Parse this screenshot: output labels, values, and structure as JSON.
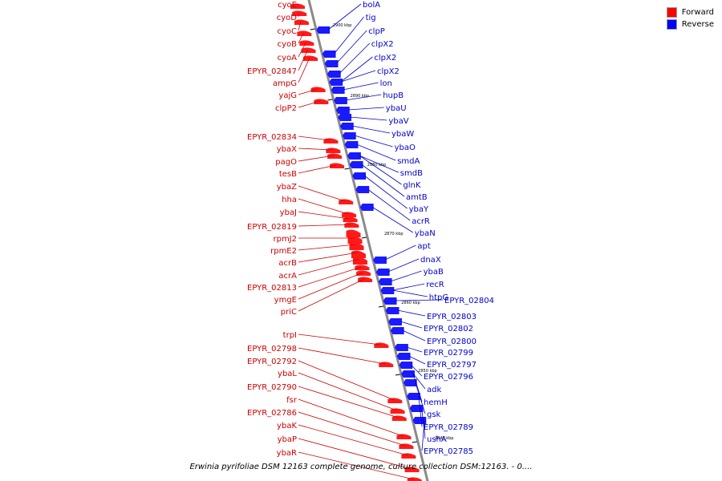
{
  "legend": {
    "forward_label": "Forward",
    "reverse_label": "Reverse",
    "forward_color": "#ff0000",
    "reverse_color": "#0000ff"
  },
  "caption": "Erwinia pyrifoliae DSM 12163 complete genome, culture collection DSM:12163. - 0....",
  "colors": {
    "forward_label": "#cc0000",
    "reverse_label": "#0000cc",
    "forward_gene": "#ff1a1a",
    "reverse_gene": "#1a1aff",
    "backbone": "#8a8a8a"
  },
  "scale_ticks": [
    "2900 kbp",
    "2890 kbp",
    "2880 kbp",
    "2870 kbp",
    "2860 kbp",
    "2850 kbp",
    "2840 kbp"
  ],
  "forward_genes": [
    "cyoE",
    "cyoD",
    "cyoC",
    "cyoB",
    "cyoA",
    "EPYR_02847",
    "ampG",
    "yajG",
    "clpP2",
    "EPYR_02834",
    "ybaX",
    "pagO",
    "tesB",
    "ybaZ",
    "hha",
    "ybaJ",
    "EPYR_02819",
    "rpmJ2",
    "rpmE2",
    "acrB",
    "acrA",
    "EPYR_02813",
    "ymgE",
    "priC",
    "trpI",
    "EPYR_02798",
    "EPYR_02792",
    "ybaL",
    "EPYR_02790",
    "fsr",
    "EPYR_02786",
    "ybaK",
    "ybaP",
    "ybaR"
  ],
  "reverse_genes": [
    "bolA",
    "tig",
    "clpP",
    "clpX2",
    "clpX2",
    "clpX2",
    "lon",
    "hupB",
    "ybaU",
    "ybaV",
    "ybaW",
    "ybaO",
    "smdA",
    "smdB",
    "glnK",
    "amtB",
    "ybaY",
    "acrR",
    "ybaN",
    "apt",
    "dnaX",
    "ybaB",
    "recR",
    "htpG",
    "EPYR_02804",
    "EPYR_02803",
    "EPYR_02802",
    "EPYR_02800",
    "EPYR_02799",
    "EPYR_02797",
    "EPYR_02796",
    "adk",
    "hemH",
    "gsk",
    "EPYR_02789",
    "ushA",
    "EPYR_02785"
  ]
}
